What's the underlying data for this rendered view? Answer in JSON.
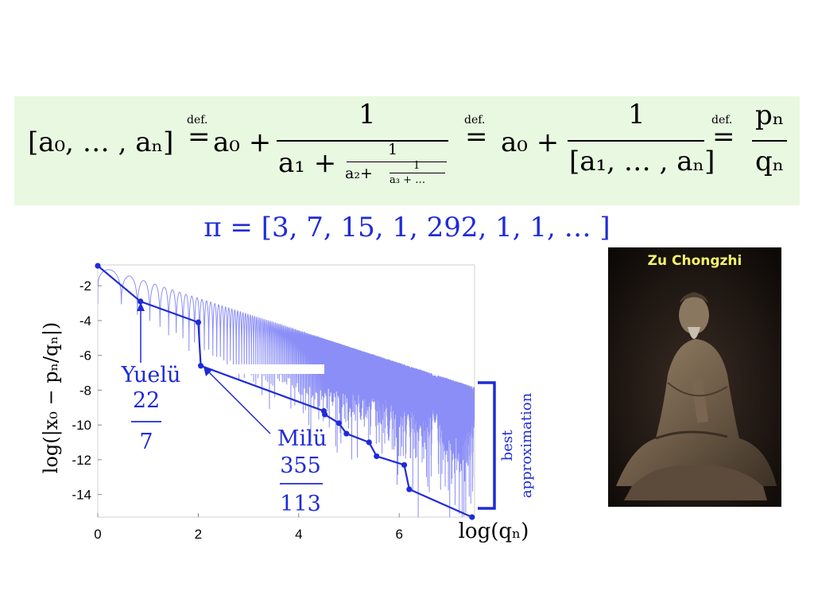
{
  "definition": {
    "seq": "[a₀, … , aₙ]",
    "def_label": "def.",
    "eq": "=",
    "a0_plus": "a₀ +",
    "one": "1",
    "den1_a1": "a₁ +",
    "den1_frac_num": "1",
    "den1_frac_den": "a₂+",
    "den1_inner_num": "1",
    "den1_inner_den": "a₃ + …",
    "den2": "[a₁, … , aₙ]",
    "pn": "pₙ",
    "qn": "qₙ"
  },
  "pi_expansion": "π = [3, 7, 15, 1, 292, 1, 1, … ]",
  "photo": {
    "caption": "Zu Chongzhi"
  },
  "annotations": {
    "yuelu_name": "Yuelü",
    "yuelu_num": "22",
    "yuelu_den": "7",
    "milu_name": "Milü",
    "milu_num": "355",
    "milu_den": "113",
    "bracket_label_1": "best",
    "bracket_label_2": "approximation"
  },
  "chart_data": {
    "type": "line",
    "title": "",
    "xlabel": "log(qₙ)",
    "ylabel": "log(|x₀ − pₙ/qₙ|)",
    "xlim": [
      0,
      7.5
    ],
    "ylim": [
      -15.3,
      -0.8
    ],
    "xticks": [
      "0",
      "2",
      "4",
      "6"
    ],
    "yticks": [
      "-2",
      "-4",
      "-6",
      "-8",
      "-10",
      "-12",
      "-14"
    ],
    "colors": {
      "envelope": "#1f2bd8",
      "oscillation": "#8b8ef6"
    },
    "series": [
      {
        "name": "",
        "points": [
          [
            0,
            -0.85
          ],
          [
            0.85,
            -2.9
          ],
          [
            2.0,
            -4.1
          ],
          [
            2.05,
            -6.6
          ],
          [
            4.5,
            -9.2
          ],
          [
            4.52,
            -9.4
          ],
          [
            4.8,
            -9.9
          ],
          [
            4.95,
            -10.5
          ],
          [
            5.4,
            -11.0
          ],
          [
            5.55,
            -11.8
          ],
          [
            6.1,
            -12.3
          ],
          [
            6.2,
            -13.7
          ],
          [
            7.45,
            -15.3
          ]
        ]
      }
    ]
  }
}
